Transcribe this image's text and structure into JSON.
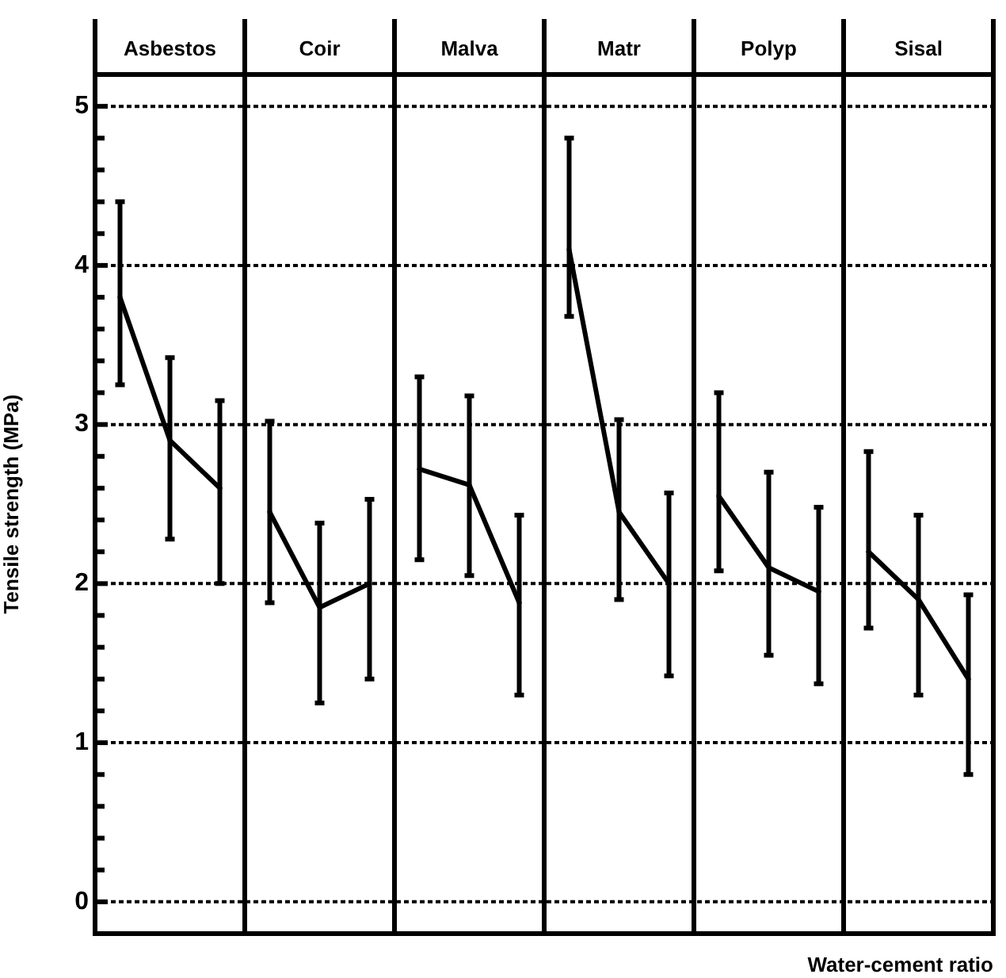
{
  "chart_data": {
    "type": "line",
    "annotations": [
      "Asbestos",
      "Coir",
      "Malva",
      "Matr",
      "Polyp",
      "Sisal"
    ],
    "ylabel": "Tensile strength (MPa)",
    "xlabel": "Water-cement ratio",
    "categories": [
      null,
      null,
      null,
      null,
      null,
      null,
      null,
      null,
      null,
      null,
      null,
      null,
      null,
      null,
      null,
      null,
      null,
      null
    ],
    "series": [
      {
        "color": "#000000",
        "values": [
          3.8,
          2.9,
          2.6,
          null,
          null,
          null,
          null,
          null,
          null,
          null,
          null,
          null,
          null,
          null,
          null,
          null,
          null,
          null
        ],
        "errors": [
          [
            3.25,
            4.4
          ],
          [
            2.28,
            3.42
          ],
          [
            2.0,
            3.15
          ],
          null,
          null,
          null,
          null,
          null,
          null,
          null,
          null,
          null,
          null,
          null,
          null,
          null,
          null,
          null
        ]
      },
      {
        "color": "#000000",
        "values": [
          null,
          null,
          null,
          2.45,
          1.85,
          2.0,
          null,
          null,
          null,
          null,
          null,
          null,
          null,
          null,
          null,
          null,
          null,
          null
        ],
        "errors": [
          null,
          null,
          null,
          [
            1.88,
            3.02
          ],
          [
            1.25,
            2.38
          ],
          [
            1.4,
            2.53
          ],
          null,
          null,
          null,
          null,
          null,
          null,
          null,
          null,
          null,
          null,
          null,
          null
        ]
      },
      {
        "color": "#000000",
        "values": [
          null,
          null,
          null,
          null,
          null,
          null,
          2.72,
          2.62,
          1.88,
          null,
          null,
          null,
          null,
          null,
          null,
          null,
          null,
          null
        ],
        "errors": [
          null,
          null,
          null,
          null,
          null,
          null,
          [
            2.15,
            3.3
          ],
          [
            2.05,
            3.18
          ],
          [
            1.3,
            2.43
          ],
          null,
          null,
          null,
          null,
          null,
          null,
          null,
          null,
          null
        ]
      },
      {
        "color": "#000000",
        "values": [
          null,
          null,
          null,
          null,
          null,
          null,
          null,
          null,
          null,
          4.1,
          2.45,
          2.0,
          null,
          null,
          null,
          null,
          null,
          null
        ],
        "errors": [
          null,
          null,
          null,
          null,
          null,
          null,
          null,
          null,
          null,
          [
            3.68,
            4.8
          ],
          [
            1.9,
            3.03
          ],
          [
            1.42,
            2.57
          ],
          null,
          null,
          null,
          null,
          null,
          null
        ]
      },
      {
        "color": "#000000",
        "values": [
          null,
          null,
          null,
          null,
          null,
          null,
          null,
          null,
          null,
          null,
          null,
          null,
          2.55,
          2.1,
          1.95,
          null,
          null,
          null
        ],
        "errors": [
          null,
          null,
          null,
          null,
          null,
          null,
          null,
          null,
          null,
          null,
          null,
          null,
          [
            2.08,
            3.2
          ],
          [
            1.55,
            2.7
          ],
          [
            1.37,
            2.48
          ],
          null,
          null,
          null
        ]
      },
      {
        "color": "#000000",
        "values": [
          null,
          null,
          null,
          null,
          null,
          null,
          null,
          null,
          null,
          null,
          null,
          null,
          null,
          null,
          null,
          2.2,
          1.9,
          1.4
        ],
        "errors": [
          null,
          null,
          null,
          null,
          null,
          null,
          null,
          null,
          null,
          null,
          null,
          null,
          null,
          null,
          null,
          [
            1.72,
            2.83
          ],
          [
            1.3,
            2.43
          ],
          [
            0.8,
            1.93
          ]
        ]
      }
    ],
    "ylim": [
      -0.2,
      5.2
    ],
    "yticks": [
      0,
      {
        "value": 0.2,
        "label": null
      },
      {
        "value": 0.4,
        "label": null
      },
      {
        "value": 0.6,
        "label": null
      },
      {
        "value": 0.8,
        "label": null
      },
      1,
      {
        "value": 1.2,
        "label": null
      },
      {
        "value": 1.4,
        "label": null
      },
      {
        "value": 1.6,
        "label": null
      },
      {
        "value": 1.8,
        "label": null
      },
      2,
      {
        "value": 2.2,
        "label": null
      },
      {
        "value": 2.4,
        "label": null
      },
      {
        "value": 2.6,
        "label": null
      },
      {
        "value": 2.8,
        "label": null
      },
      3,
      {
        "value": 3.2,
        "label": null
      },
      {
        "value": 3.4,
        "label": null
      },
      {
        "value": 3.6,
        "label": null
      },
      {
        "value": 3.8,
        "label": null
      },
      4,
      {
        "value": 4.2,
        "label": null
      },
      {
        "value": 4.4,
        "label": null
      },
      {
        "value": 4.6,
        "label": null
      },
      {
        "value": 4.8,
        "label": null
      },
      5
    ],
    "grid": "y",
    "marker": "none"
  }
}
